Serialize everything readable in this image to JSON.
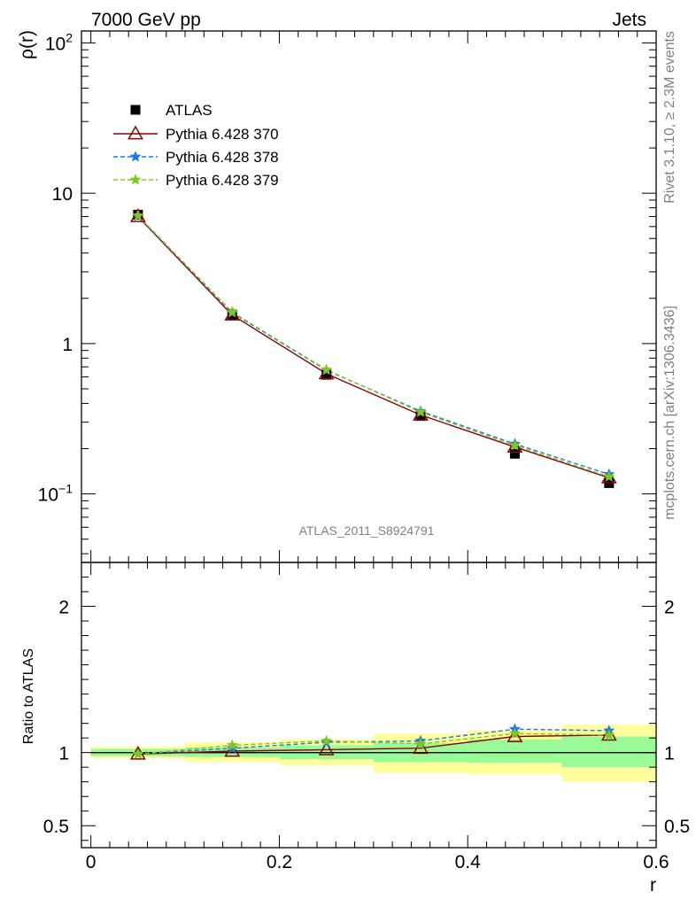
{
  "header": {
    "left": "7000 GeV pp",
    "right": "Jets"
  },
  "side_labels": {
    "rivet": "Rivet 3.1.10, ≥ 2.3M events",
    "mcplots": "mcplots.cern.ch [arXiv:1306.3436]"
  },
  "analysis_tag": "ATLAS_2011_S8924791",
  "colors": {
    "atlas": "#000000",
    "p370": "#8b0000",
    "p378": "#1e78e6",
    "p379": "#7dc81e",
    "band_inner": "#98fb98",
    "band_outer": "#ffff9b"
  },
  "chart_data": [
    {
      "type": "line",
      "title": "",
      "xlabel": "r",
      "ylabel": "ρ(r)",
      "yscale": "log",
      "ylim": [
        0.035,
        120
      ],
      "xlim": [
        0,
        0.6
      ],
      "ytick_labels": [
        {
          "value": 100,
          "base": "10",
          "exp": "2"
        },
        {
          "value": 10,
          "base": "10",
          "exp": ""
        },
        {
          "value": 1,
          "base": "1",
          "exp": ""
        },
        {
          "value": 0.1,
          "base": "10",
          "exp": "−1"
        }
      ],
      "legend_position": "top-left",
      "x": [
        0.05,
        0.15,
        0.25,
        0.35,
        0.45,
        0.55
      ],
      "series": [
        {
          "name": "ATLAS",
          "marker": "square",
          "values": [
            7.2,
            1.56,
            0.62,
            0.33,
            0.185,
            0.118
          ]
        },
        {
          "name": "Pythia 6.428 370",
          "marker": "open-triangle",
          "line": "solid",
          "values": [
            7.0,
            1.55,
            0.63,
            0.335,
            0.205,
            0.128
          ]
        },
        {
          "name": "Pythia 6.428 378",
          "marker": "star",
          "line": "dashed",
          "values": [
            7.05,
            1.6,
            0.665,
            0.355,
            0.215,
            0.135
          ]
        },
        {
          "name": "Pythia 6.428 379",
          "marker": "star",
          "line": "dashed",
          "values": [
            7.1,
            1.62,
            0.67,
            0.35,
            0.21,
            0.13
          ]
        }
      ]
    },
    {
      "type": "line",
      "title": "",
      "xlabel": "r",
      "ylabel": "Ratio to ATLAS",
      "ylim": [
        0.35,
        2.3
      ],
      "xlim": [
        -0.01,
        0.6
      ],
      "yticks": [
        0.5,
        1,
        2
      ],
      "ytick_labels": [
        "0.5",
        "1",
        "2"
      ],
      "xticks": [
        0,
        0.2,
        0.4,
        0.6
      ],
      "xtick_labels": [
        "0",
        "0.2",
        "0.4",
        "0.6"
      ],
      "x": [
        0.05,
        0.15,
        0.25,
        0.35,
        0.45,
        0.55
      ],
      "bins": [
        [
          0.0,
          0.1
        ],
        [
          0.1,
          0.2
        ],
        [
          0.2,
          0.3
        ],
        [
          0.3,
          0.4
        ],
        [
          0.4,
          0.5
        ],
        [
          0.5,
          0.6
        ]
      ],
      "band_inner": [
        [
          0.975,
          1.025
        ],
        [
          0.97,
          1.035
        ],
        [
          0.955,
          1.05
        ],
        [
          0.935,
          1.065
        ],
        [
          0.93,
          1.09
        ],
        [
          0.9,
          1.11
        ]
      ],
      "band_outer": [
        [
          0.96,
          1.04
        ],
        [
          0.935,
          1.07
        ],
        [
          0.91,
          1.09
        ],
        [
          0.86,
          1.13
        ],
        [
          0.85,
          1.15
        ],
        [
          0.8,
          1.19
        ]
      ],
      "series": [
        {
          "name": "Pythia 6.428 370",
          "values": [
            0.99,
            1.01,
            1.02,
            1.03,
            1.11,
            1.12
          ]
        },
        {
          "name": "Pythia 6.428 378",
          "values": [
            0.99,
            1.03,
            1.07,
            1.08,
            1.16,
            1.15
          ]
        },
        {
          "name": "Pythia 6.428 379",
          "values": [
            0.99,
            1.05,
            1.08,
            1.06,
            1.13,
            1.12
          ]
        }
      ]
    }
  ]
}
